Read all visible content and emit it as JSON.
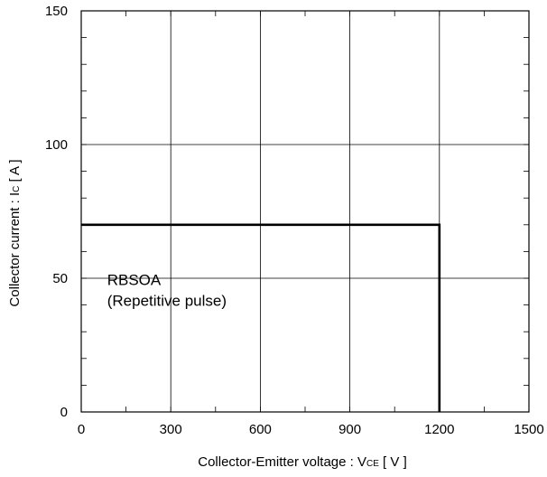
{
  "chart_data": {
    "type": "line",
    "title": "",
    "xlabel": "Collector-Emitter voltage  :  V",
    "xlabel_sub": "CE",
    "xlabel_unit": " [ V ]",
    "ylabel": "Collector current : I",
    "ylabel_sub": "C",
    "ylabel_unit": " [ A ]",
    "xlim": [
      0,
      1500
    ],
    "ylim": [
      0,
      150
    ],
    "x_ticks": [
      0,
      300,
      600,
      900,
      1200,
      1500
    ],
    "x_tick_labels": [
      "0",
      "300",
      "600",
      "900",
      "1200",
      "1500"
    ],
    "y_ticks": [
      0,
      50,
      100,
      150
    ],
    "y_tick_labels": [
      "0",
      "50",
      "100",
      "150"
    ],
    "grid": true,
    "series": [
      {
        "x": [
          0,
          1200,
          1200
        ],
        "y": [
          70,
          70,
          0
        ]
      }
    ],
    "annotations": [
      {
        "lines": [
          "RBSOA",
          "(Repetitive pulse)"
        ],
        "x": 350,
        "y": 40
      }
    ]
  }
}
